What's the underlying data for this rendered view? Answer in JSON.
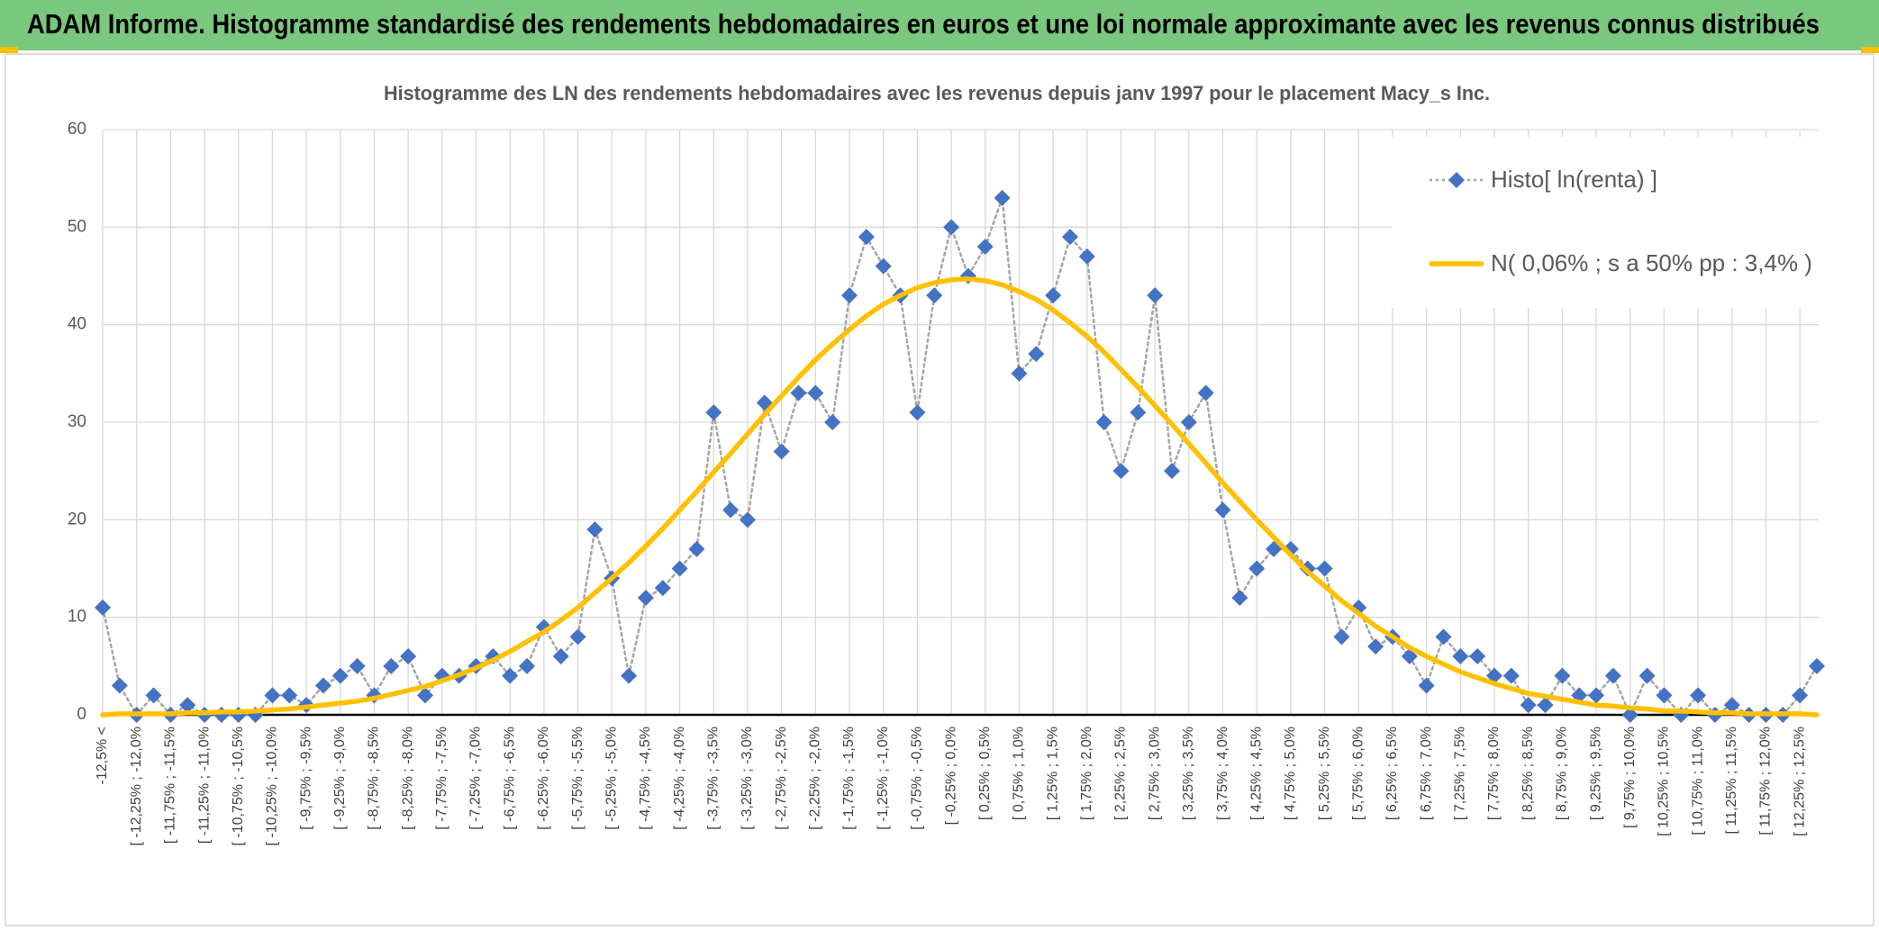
{
  "header": {
    "title": "ADAM Informe. Histogramme standardisé des rendements hebdomadaires en euros et une loi normale approximante avec les revenus connus distribués"
  },
  "chart_data": {
    "type": "line",
    "title": "Histogramme des LN des rendements hebdomadaires avec les revenus depuis janv 1997 pour le placement Macy_s Inc.",
    "categories": [
      "-12,5% <",
      null,
      "[ -12,25% ; -12,0%",
      null,
      "[ -11,75% ; -11,5%",
      null,
      "[ -11,25% ; -11,0%",
      null,
      "[ -10,75% ; -10,5%",
      null,
      "[ -10,25% ; -10,0%",
      null,
      "[ -9,75% ; -9,5%",
      null,
      "[ -9,25% ; -9,0%",
      null,
      "[ -8,75% ; -8,5%",
      null,
      "[ -8,25% ; -8,0%",
      null,
      "[ -7,75% ; -7,5%",
      null,
      "[ -7,25% ; -7,0%",
      null,
      "[ -6,75% ; -6,5%",
      null,
      "[ -6,25% ; -6,0%",
      null,
      "[ -5,75% ; -5,5%",
      null,
      "[ -5,25% ; -5,0%",
      null,
      "[ -4,75% ; -4,5%",
      null,
      "[ -4,25% ; -4,0%",
      null,
      "[ -3,75% ; -3,5%",
      null,
      "[ -3,25% ; -3,0%",
      null,
      "[ -2,75% ; -2,5%",
      null,
      "[ -2,25% ; -2,0%",
      null,
      "[ -1,75% ; -1,5%",
      null,
      "[ -1,25% ; -1,0%",
      null,
      "[ -0,75% ; -0,5%",
      null,
      "[ -0,25% ; 0,0%",
      null,
      "[ 0,25% ; 0,5%",
      null,
      "[ 0,75% ; 1,0%",
      null,
      "[ 1,25% ; 1,5%",
      null,
      "[ 1,75% ; 2,0%",
      null,
      "[ 2,25% ; 2,5%",
      null,
      "[ 2,75% ; 3,0%",
      null,
      "[ 3,25% ; 3,5%",
      null,
      "[ 3,75% ; 4,0%",
      null,
      "[ 4,25% ; 4,5%",
      null,
      "[ 4,75% ; 5,0%",
      null,
      "[ 5,25% ; 5,5%",
      null,
      "[ 5,75% ; 6,0%",
      null,
      "[ 6,25% ; 6,5%",
      null,
      "[ 6,75% ; 7,0%",
      null,
      "[ 7,25% ; 7,5%",
      null,
      "[ 7,75% ; 8,0%",
      null,
      "[ 8,25% ; 8,5%",
      null,
      "[ 8,75% ; 9,0%",
      null,
      "[ 9,25% ; 9,5%",
      null,
      "[ 9,75% ; 10,0%",
      null,
      "[ 10,25% ; 10,5%",
      null,
      "[ 10,75% ; 11,0%",
      null,
      "[ 11,25% ; 11,5%",
      null,
      "[ 11,75% ; 12,0%",
      null,
      "[ 12,25% ; 12,5%",
      null
    ],
    "series": [
      {
        "name": "Histo[ ln(renta) ]",
        "color": "#4472c4",
        "line_color": "#a5a5a5",
        "marker": "diamond",
        "line": "dotted",
        "values": [
          11,
          3,
          0,
          2,
          0,
          1,
          0,
          0,
          0,
          0,
          2,
          2,
          1,
          3,
          4,
          5,
          2,
          5,
          6,
          2,
          4,
          4,
          5,
          6,
          4,
          5,
          9,
          6,
          8,
          19,
          14,
          4,
          12,
          13,
          15,
          17,
          31,
          21,
          20,
          32,
          27,
          33,
          33,
          30,
          43,
          49,
          46,
          43,
          31,
          43,
          50,
          45,
          48,
          53,
          35,
          37,
          43,
          49,
          47,
          30,
          25,
          31,
          43,
          25,
          30,
          33,
          21,
          12,
          15,
          17,
          17,
          15,
          15,
          8,
          11,
          7,
          8,
          6,
          3,
          8,
          6,
          6,
          4,
          4,
          1,
          1,
          4,
          2,
          2,
          4,
          0,
          4,
          2,
          0,
          2,
          0,
          1,
          0,
          0,
          0,
          2,
          5
        ]
      },
      {
        "name": "N( 0,06% ; s a 50% pp : 3,4% )",
        "color": "#ffc000",
        "line": "solid",
        "values": [
          0.0,
          0.1,
          0.1,
          0.1,
          0.1,
          0.2,
          0.2,
          0.3,
          0.3,
          0.4,
          0.5,
          0.6,
          0.8,
          1.0,
          1.2,
          1.4,
          1.7,
          2.1,
          2.5,
          2.9,
          3.5,
          4.1,
          4.8,
          5.6,
          6.5,
          7.5,
          8.5,
          9.7,
          11.0,
          12.5,
          14.0,
          15.6,
          17.3,
          19.1,
          21.0,
          22.9,
          24.9,
          26.8,
          28.8,
          30.8,
          32.7,
          34.6,
          36.4,
          38.0,
          39.5,
          40.9,
          42.1,
          43.0,
          43.8,
          44.3,
          44.6,
          44.7,
          44.5,
          44.1,
          43.4,
          42.6,
          41.5,
          40.2,
          38.8,
          37.2,
          35.4,
          33.6,
          31.7,
          29.8,
          27.8,
          25.8,
          23.8,
          21.9,
          20.0,
          18.2,
          16.4,
          14.7,
          13.2,
          11.7,
          10.4,
          9.1,
          8.0,
          6.9,
          6.0,
          5.2,
          4.4,
          3.8,
          3.2,
          2.7,
          2.2,
          1.9,
          1.6,
          1.3,
          1.0,
          0.9,
          0.7,
          0.6,
          0.4,
          0.4,
          0.3,
          0.2,
          0.2,
          0.1,
          0.1,
          0.1,
          0.1,
          0.0
        ]
      }
    ],
    "ylim": [
      0,
      60
    ],
    "yticks": [
      0,
      10,
      20,
      30,
      40,
      50,
      60
    ],
    "grid": true,
    "legend": "top-right"
  }
}
